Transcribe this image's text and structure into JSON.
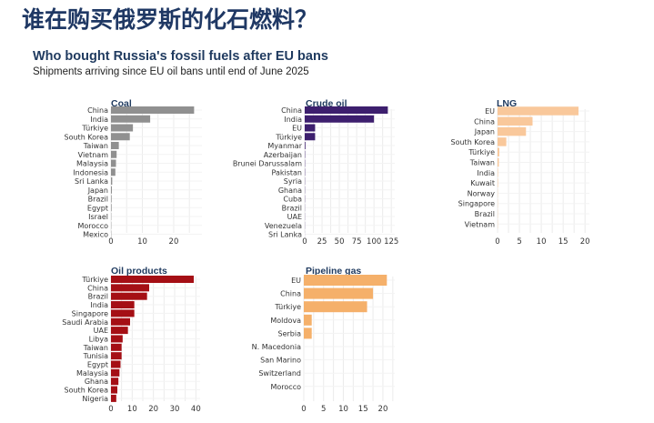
{
  "slide": {
    "title": "谁在购买俄罗斯的化石燃料？"
  },
  "figure": {
    "title": "Who bought Russia's fossil fuels after EU bans",
    "subtitle": "Shipments arriving since EU oil bans until end of June 2025"
  },
  "chart_data": [
    {
      "type": "bar",
      "orientation": "horizontal",
      "title": "Coal",
      "color": "#909090",
      "categories": [
        "China",
        "India",
        "Türkiye",
        "South Korea",
        "Taiwan",
        "Vietnam",
        "Malaysia",
        "Indonesia",
        "Sri Lanka",
        "Japan",
        "Brazil",
        "Egypt",
        "Israel",
        "Morocco",
        "Mexico"
      ],
      "values": [
        26.5,
        12.5,
        7.0,
        6.0,
        2.5,
        1.8,
        1.6,
        1.4,
        0.4,
        0.3,
        0.2,
        0.2,
        0.1,
        0.1,
        0.1
      ],
      "xticks": [
        0,
        10,
        20
      ],
      "xlim": [
        0,
        29
      ],
      "grid": true
    },
    {
      "type": "bar",
      "orientation": "horizontal",
      "title": "Crude oil",
      "color": "#3d1f6e",
      "categories": [
        "China",
        "India",
        "EU",
        "Türkiye",
        "Myanmar",
        "Azerbaijan",
        "Brunei Darussalam",
        "Pakistan",
        "Syria",
        "Ghana",
        "Cuba",
        "Brazil",
        "UAE",
        "Venezuela",
        "Sri Lanka"
      ],
      "values": [
        120,
        100,
        15,
        15,
        1,
        0.5,
        0.4,
        0.4,
        0.3,
        0.3,
        0.3,
        0.2,
        0.2,
        0.2,
        0.1
      ],
      "xticks": [
        0,
        25,
        50,
        75,
        100,
        125
      ],
      "xlim": [
        0,
        130
      ],
      "grid": true
    },
    {
      "type": "bar",
      "orientation": "horizontal",
      "title": "LNG",
      "color": "#f9c89b",
      "categories": [
        "EU",
        "China",
        "Japan",
        "South Korea",
        "Türkiye",
        "Taiwan",
        "India",
        "Kuwait",
        "Norway",
        "Singapore",
        "Brazil",
        "Vietnam"
      ],
      "values": [
        18.5,
        8,
        6.5,
        2,
        0.4,
        0.3,
        0.1,
        0.1,
        0.05,
        0.05,
        0.05,
        0.05
      ],
      "xticks": [
        0,
        5,
        10,
        15,
        20
      ],
      "xlim": [
        0,
        21
      ],
      "grid": true
    },
    {
      "type": "bar",
      "orientation": "horizontal",
      "title": "Oil products",
      "color": "#a50f15",
      "categories": [
        "Türkiye",
        "China",
        "Brazil",
        "India",
        "Singapore",
        "Saudi Arabia",
        "UAE",
        "Libya",
        "Taiwan",
        "Tunisia",
        "Egypt",
        "Malaysia",
        "Ghana",
        "South Korea",
        "Nigeria"
      ],
      "values": [
        39,
        18,
        17,
        11,
        11,
        9,
        8,
        5.5,
        5,
        5,
        4.5,
        4,
        3.5,
        3,
        2.5
      ],
      "xticks": [
        0,
        10,
        20,
        30,
        40
      ],
      "xlim": [
        0,
        42
      ],
      "grid": true
    },
    {
      "type": "bar",
      "orientation": "horizontal",
      "title": "Pipeline gas",
      "color": "#f5b06a",
      "categories": [
        "EU",
        "China",
        "Türkiye",
        "Moldova",
        "Serbia",
        "N. Macedonia",
        "San Marino",
        "Switzerland",
        "Morocco"
      ],
      "values": [
        21,
        17.5,
        16,
        2,
        2,
        0,
        0,
        0,
        0
      ],
      "xticks": [
        0,
        5,
        10,
        15,
        20
      ],
      "xlim": [
        0,
        23
      ],
      "grid": true
    }
  ]
}
